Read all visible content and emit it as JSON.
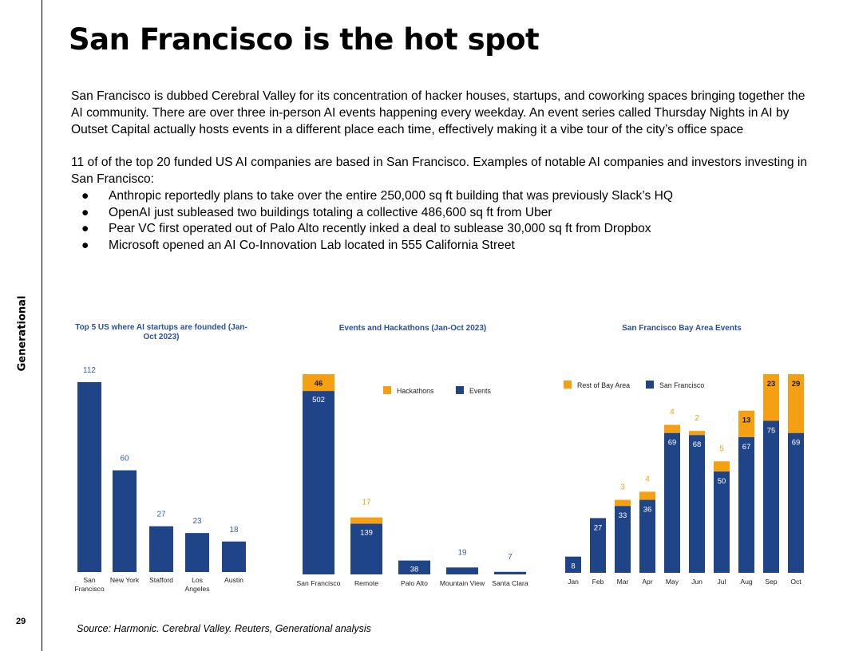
{
  "sidebar": {
    "brand": "Generational",
    "page_number": "29"
  },
  "title": "San Francisco is the hot spot",
  "body": {
    "paragraph1": "San Francisco is dubbed Cerebral Valley for its concentration of hacker houses, startups, and coworking spaces bringing together the AI community. There are over three in-person AI events happening every weekday. An event series called Thursday Nights in AI by Outset Capital actually hosts events in a different place each time, effectively making it a vibe tour of the city’s office space",
    "paragraph2": "11 of of the top 20 funded US AI companies are based in San Francisco. Examples of notable AI companies and investors investing in San Francisco:",
    "bullet_glyph": "●",
    "bullets": [
      "Anthropic reportedly plans to take over the entire 250,000 sq ft building that was previously Slack’s HQ",
      "OpenAI just subleased two buildings totaling a collective 486,600 sq ft from Uber",
      "Pear VC first operated out of Palo Alto recently inked a deal to sublease 30,000 sq ft from Dropbox",
      "Microsoft opened an AI Co-Innovation Lab located in 555 California Street"
    ]
  },
  "source": "Source: Harmonic. Cerebral Valley. Reuters, Generational analysis",
  "colors": {
    "navy": "#1f4488",
    "orange": "#f5a012",
    "title_blue": "#2b4f9c",
    "label_blue": "#3a5fa8"
  },
  "chart_data": [
    {
      "type": "bar",
      "title_lines": [
        "Top 5 US where AI startups are founded (Jan-",
        "Oct 2023)"
      ],
      "categories": [
        [
          "San",
          "Francisco"
        ],
        [
          "New York"
        ],
        [
          "Stafford"
        ],
        [
          "Los",
          "Angeles"
        ],
        [
          "Austin"
        ]
      ],
      "values": [
        112,
        60,
        27,
        23,
        18
      ],
      "ylim": [
        0,
        112
      ]
    },
    {
      "type": "bar",
      "stacked": true,
      "title_lines": [
        "Events and Hackathons (Jan-Oct 2023)"
      ],
      "categories": [
        "San Francisco",
        "Remote",
        "Palo Alto",
        "Mountain View",
        "Santa Clara"
      ],
      "series": [
        {
          "name": "Events",
          "color": "#1f4488",
          "values": [
            502,
            139,
            38,
            19,
            7
          ]
        },
        {
          "name": "Hackathons",
          "color": "#f5a012",
          "values": [
            46,
            17,
            null,
            null,
            null
          ]
        }
      ],
      "legend_order": [
        "Hackathons",
        "Events"
      ],
      "legend": "top-right",
      "ylim": [
        0,
        548
      ]
    },
    {
      "type": "bar",
      "stacked": true,
      "title_lines": [
        "San Francisco Bay Area Events"
      ],
      "categories": [
        "Jan",
        "Feb",
        "Mar",
        "Apr",
        "May",
        "Jun",
        "Jul",
        "Aug",
        "Sep",
        "Oct"
      ],
      "series": [
        {
          "name": "San Francisco",
          "color": "#1f4488",
          "values": [
            8,
            27,
            33,
            36,
            69,
            68,
            50,
            67,
            75,
            69
          ]
        },
        {
          "name": "Rest of Bay Area",
          "color": "#f5a012",
          "values": [
            null,
            null,
            3,
            4,
            4,
            2,
            5,
            13,
            23,
            29
          ]
        }
      ],
      "legend_order": [
        "Rest of Bay Area",
        "San Francisco"
      ],
      "legend": "top-left",
      "ylim": [
        0,
        98
      ]
    }
  ]
}
